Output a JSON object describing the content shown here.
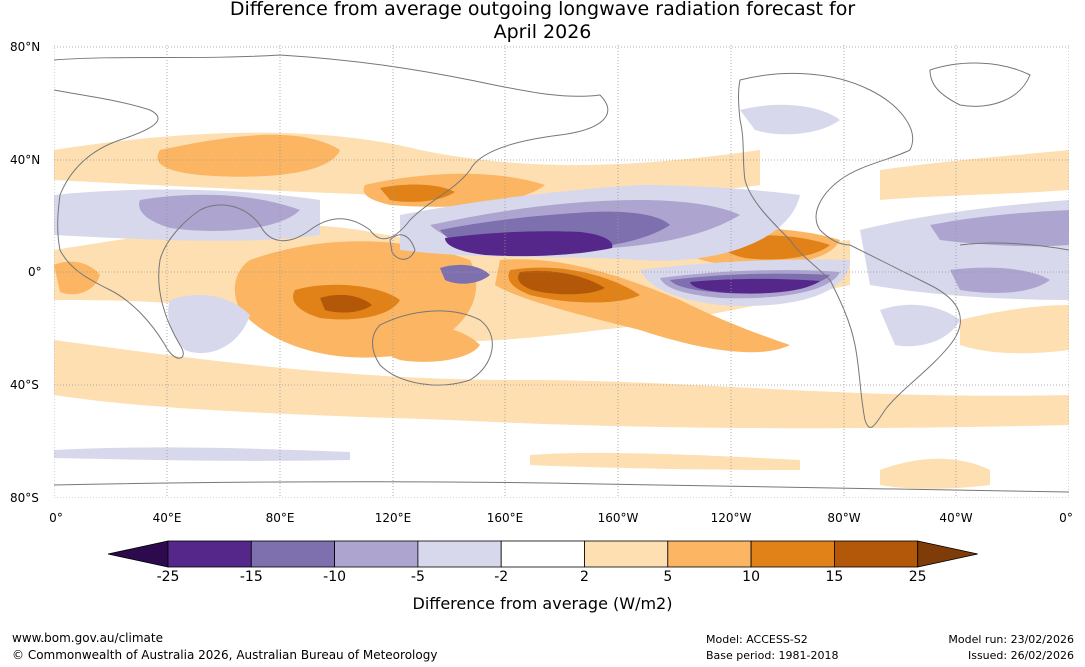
{
  "title_line1": "Difference from average outgoing longwave radiation forecast for",
  "title_line2": "April 2026",
  "lat_labels": [
    "80°N",
    "40°N",
    "0°",
    "40°S",
    "80°S"
  ],
  "lon_labels": [
    "0°",
    "40°E",
    "80°E",
    "120°E",
    "160°E",
    "160°W",
    "120°W",
    "80°W",
    "40°W",
    "0°"
  ],
  "colorbar": {
    "ticks": [
      "-25",
      "-15",
      "-10",
      "-5",
      "-2",
      "2",
      "5",
      "10",
      "15",
      "25"
    ],
    "colors": [
      "#2d0a4e",
      "#55278a",
      "#7e6fae",
      "#ada5d0",
      "#d8d8ec",
      "#ffffff",
      "#fddfb2",
      "#fbb563",
      "#e08218",
      "#b35708",
      "#7f3b08"
    ],
    "label": "Difference from average (W/m2)"
  },
  "footer": {
    "website": "www.bom.gov.au/climate",
    "copyright": "© Commonwealth of Australia 2026, Australian Bureau of Meteorology",
    "model": "Model: ACCESS-S2",
    "base_period": "Base period: 1981-2018",
    "model_run": "Model run: 23/02/2026",
    "issued": "Issued: 26/02/2026"
  }
}
